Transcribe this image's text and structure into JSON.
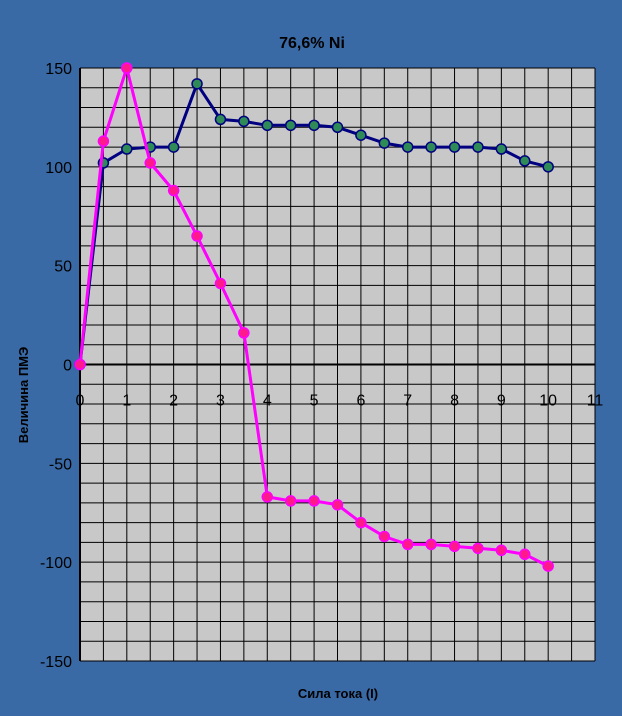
{
  "chart_data": {
    "type": "line",
    "title": "76,6% Ni",
    "xlabel": "Сила тока (I)",
    "ylabel": "Величина ПМЭ",
    "xlim": [
      0,
      11
    ],
    "ylim": [
      -150,
      150
    ],
    "x_ticks": [
      0,
      1,
      2,
      3,
      4,
      5,
      6,
      7,
      8,
      9,
      10,
      11
    ],
    "y_ticks": [
      -150,
      -100,
      -50,
      0,
      50,
      100,
      150
    ],
    "x_tick_labels": [
      "0",
      "1",
      "2",
      "3",
      "4",
      "5",
      "6",
      "7",
      "8",
      "9",
      "10",
      "11"
    ],
    "y_tick_labels": [
      "-150",
      "-100",
      "-50",
      "0",
      "50",
      "100",
      "150"
    ],
    "grid": true,
    "legend": "none",
    "colors": {
      "outer_background": "#3a6aa6",
      "plot_background": "#c8c8c8",
      "grid": "#000000",
      "text": "#000000"
    },
    "series": [
      {
        "color": "#000080",
        "marker_fill": "#2e8b57",
        "x": [
          0,
          0.5,
          1,
          1.5,
          2,
          2.5,
          3,
          3.5,
          4,
          4.5,
          5,
          5.5,
          6,
          6.5,
          7,
          7.5,
          8,
          8.5,
          9,
          9.5,
          10
        ],
        "values": [
          0,
          102,
          109,
          110,
          110,
          142,
          124,
          123,
          121,
          121,
          121,
          120,
          116,
          112,
          110,
          110,
          110,
          110,
          109,
          103,
          100
        ]
      },
      {
        "color": "#ff00ff",
        "marker_fill": "#ff1a8c",
        "x": [
          0,
          0.5,
          1,
          1.5,
          2,
          2.5,
          3,
          3.5,
          4,
          4.5,
          5,
          5.5,
          6,
          6.5,
          7,
          7.5,
          8,
          8.5,
          9,
          9.5,
          10
        ],
        "values": [
          0,
          113,
          150,
          102,
          88,
          65,
          41,
          16,
          -67,
          -69,
          -69,
          -71,
          -80,
          -87,
          -91,
          -91,
          -92,
          -93,
          -94,
          -96,
          -102
        ]
      }
    ]
  }
}
